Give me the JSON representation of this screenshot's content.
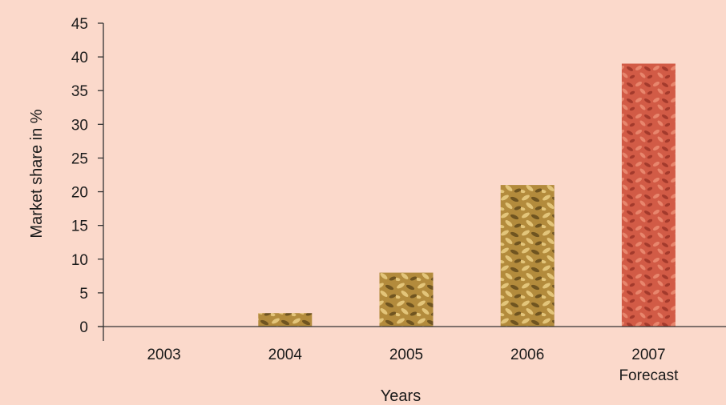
{
  "background_color": "#fbd9cb",
  "chart_data": {
    "type": "bar",
    "categories": [
      "2003",
      "2004",
      "2005",
      "2006",
      "2007"
    ],
    "category_sublabels": [
      "",
      "",
      "",
      "",
      "Forecast"
    ],
    "values": [
      0,
      2,
      8,
      21,
      39
    ],
    "xlabel": "Years",
    "ylabel": "Market share in %",
    "ylim": [
      0,
      45
    ],
    "yticks": [
      0,
      5,
      10,
      15,
      20,
      25,
      30,
      35,
      40,
      45
    ],
    "grid": false,
    "legend": "none",
    "bar_fills": [
      "grain",
      "grain",
      "grain",
      "grain",
      "red-grain"
    ],
    "colors": {
      "grain_base": "#b38b3c",
      "grain_light": "#e3c57a",
      "grain_dark": "#6f5420",
      "red_base": "#d25b46",
      "red_light": "#e8866d",
      "red_dark": "#a33a2c",
      "axis": "#333333"
    }
  }
}
